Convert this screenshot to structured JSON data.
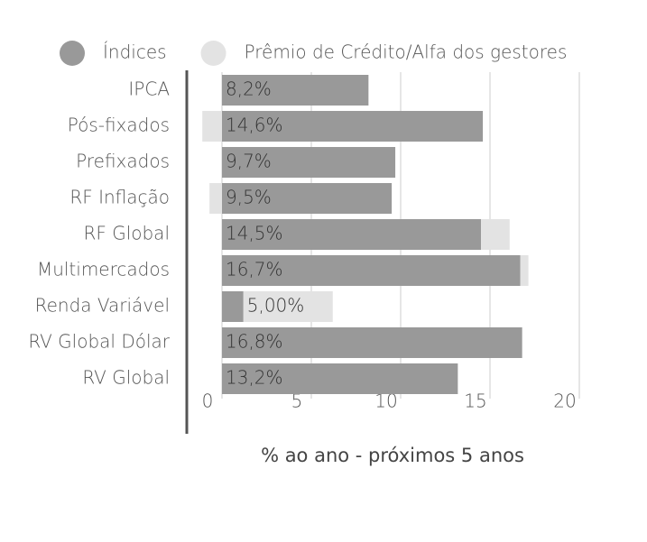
{
  "chart_data": {
    "type": "bar",
    "orientation": "horizontal",
    "stacked": true,
    "xlabel": "% ao ano - próximos 5 anos",
    "categories": [
      "IPCA",
      "Pós-fixados",
      "Prefixados",
      "RF Inflação",
      "RF Global",
      "Multimercados",
      "Renda Variável",
      "RV Global Dólar",
      "RV Global"
    ],
    "series": [
      {
        "name": "Índices",
        "color": "#999999",
        "values": [
          8.2,
          14.6,
          9.7,
          9.5,
          14.5,
          16.7,
          1.2,
          16.8,
          13.2
        ],
        "value_labels": [
          "8,2%",
          "14,6%",
          "9,7%",
          "9,5%",
          "14,5%",
          "16,7%",
          null,
          "16,8%",
          "13,2%"
        ]
      },
      {
        "name": "Prêmio de Crédito/Alfa dos gestores",
        "color": "#e3e3e3",
        "values": [
          null,
          -1.1,
          null,
          -0.7,
          1.6,
          0.45,
          5.0,
          null,
          null
        ],
        "value_labels": [
          null,
          null,
          null,
          null,
          null,
          null,
          "5,00%",
          null,
          null
        ]
      }
    ],
    "xlim": [
      -2,
      20
    ],
    "xticks": [
      0,
      5,
      10,
      15,
      20
    ],
    "grid": true
  }
}
